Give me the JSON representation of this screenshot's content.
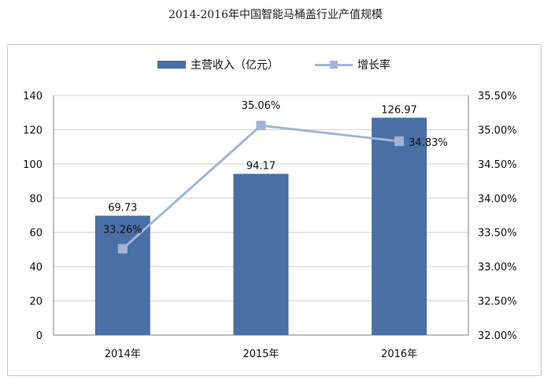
{
  "title": "2014-2016年中国智能马桶盖行业产值规模",
  "colors": {
    "bar": "#4a6fa5",
    "line": "#a3b5d6",
    "grid": "#cfcfcf",
    "axis": "#7f7f7f"
  },
  "chart_data": {
    "type": "bar",
    "categories": [
      "2014年",
      "2015年",
      "2016年"
    ],
    "series": [
      {
        "name": "主营收入（亿元）",
        "type": "bar",
        "axis": "left",
        "values": [
          69.73,
          94.17,
          126.97
        ]
      },
      {
        "name": "增长率",
        "type": "line",
        "axis": "right",
        "values": [
          33.26,
          35.06,
          34.83
        ]
      }
    ],
    "bar_labels": [
      "69.73",
      "94.17",
      "126.97"
    ],
    "line_labels": [
      "33.26%",
      "35.06%",
      "34.83%"
    ],
    "y_left": {
      "min": 0,
      "max": 140,
      "ticks": [
        "0",
        "20",
        "40",
        "60",
        "80",
        "100",
        "120",
        "140"
      ]
    },
    "y_right": {
      "min": 32.0,
      "max": 35.5,
      "ticks": [
        "32.00%",
        "32.50%",
        "33.00%",
        "33.50%",
        "34.00%",
        "34.50%",
        "35.00%",
        "35.50%"
      ]
    },
    "grid": true,
    "legend_position": "top"
  }
}
